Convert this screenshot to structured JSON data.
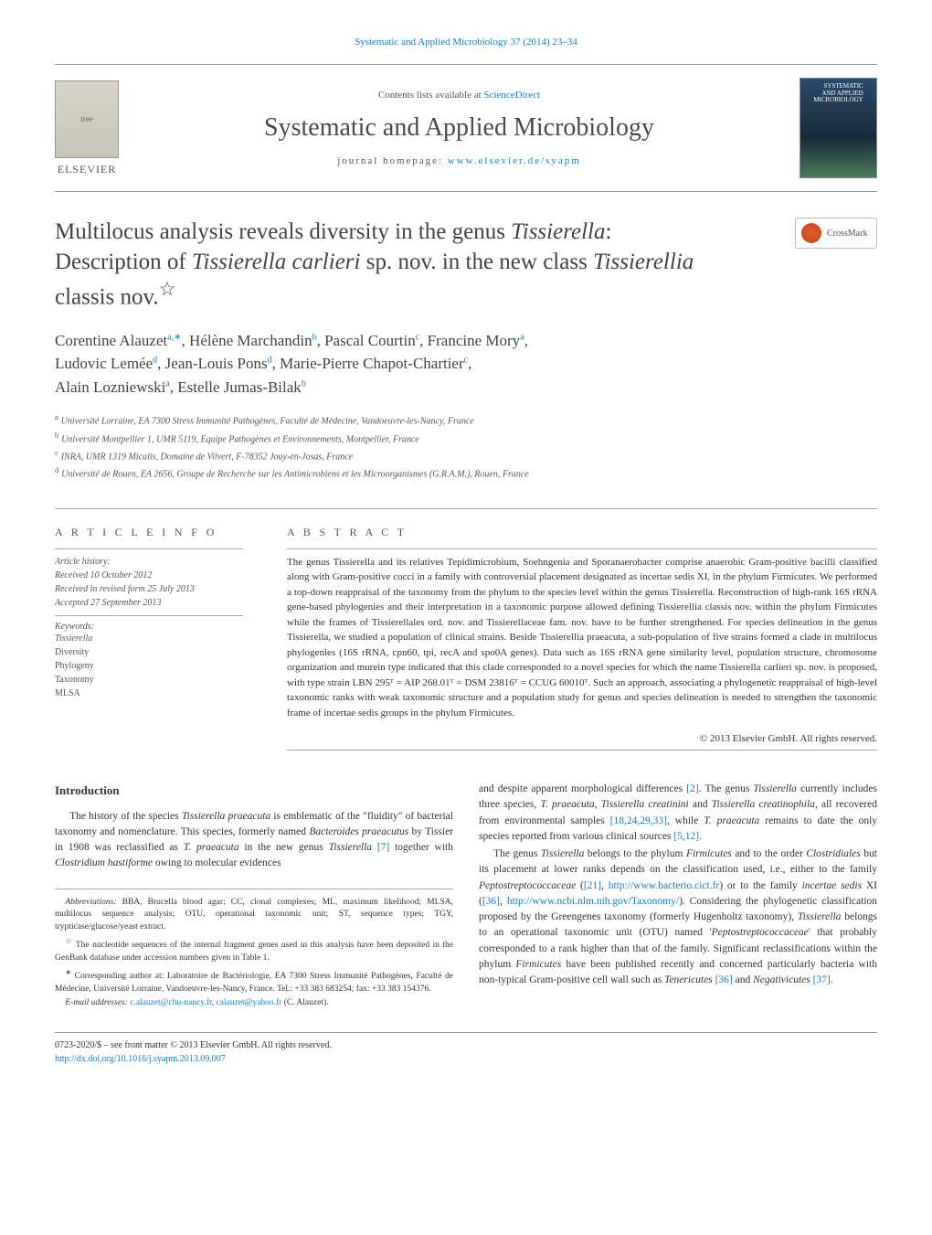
{
  "topLink": {
    "text": "Systematic and Applied Microbiology 37 (2014) 23–34",
    "color": "#1a7bb9"
  },
  "header": {
    "contentsPrefix": "Contents lists available at ",
    "contentsLink": "ScienceDirect",
    "journalName": "Systematic and Applied Microbiology",
    "homepagePrefix": "journal homepage: ",
    "homepageUrl": "www.elsevier.de/syapm",
    "elsevierLabel": "ELSEVIER",
    "coverTopLine1": "SYSTEMATIC",
    "coverTopLine2": "AND APPLIED",
    "coverTopLine3": "MICROBIOLOGY"
  },
  "crossmark": {
    "label": "CrossMark"
  },
  "title": {
    "line1_pre": "Multilocus analysis reveals diversity in the genus ",
    "line1_em": "Tissierella",
    "line1_post": ":",
    "line2_pre": "Description of ",
    "line2_em1": "Tissierella carlieri",
    "line2_mid": " sp. nov. in the new class ",
    "line2_em2": "Tissierellia",
    "line3": "classis nov.",
    "star": "☆"
  },
  "authors": {
    "a1": {
      "name": "Corentine Alauzet",
      "sup": "a,∗"
    },
    "a2": {
      "name": "Hélène Marchandin",
      "sup": "b"
    },
    "a3": {
      "name": "Pascal Courtin",
      "sup": "c"
    },
    "a4": {
      "name": "Francine Mory",
      "sup": "a"
    },
    "a5": {
      "name": "Ludovic Lemée",
      "sup": "d"
    },
    "a6": {
      "name": "Jean-Louis Pons",
      "sup": "d"
    },
    "a7": {
      "name": "Marie-Pierre Chapot-Chartier",
      "sup": "c"
    },
    "a8": {
      "name": "Alain Lozniewski",
      "sup": "a"
    },
    "a9": {
      "name": "Estelle Jumas-Bilak",
      "sup": "b"
    }
  },
  "affiliations": {
    "a": "Université Lorraine, EA 7300 Stress Immunité Pathogènes, Faculté de Médecine, Vandoeuvre-les-Nancy, France",
    "b": "Université Montpellier 1, UMR 5119, Equipe Pathogènes et Environnements, Montpellier, France",
    "c": "INRA, UMR 1319 Micalis, Domaine de Vilvert, F-78352 Jouy-en-Josas, France",
    "d": "Université de Rouen, EA 2656, Groupe de Recherche sur les Antimicrobiens et les Microorganismes (G.R.A.M.), Rouen, France"
  },
  "articleInfo": {
    "header": "A R T I C L E   I N F O",
    "historyLabel": "Article history:",
    "received": "Received 10 October 2012",
    "revised": "Received in revised form 25 July 2013",
    "accepted": "Accepted 27 September 2013",
    "keywordsLabel": "Keywords:",
    "keywords": [
      "Tissierella",
      "Diversity",
      "Phylogeny",
      "Taxonomy",
      "MLSA"
    ]
  },
  "abstract": {
    "header": "A B S T R A C T",
    "text": "The genus Tissierella and its relatives Tepidimicrobium, Soehngenia and Sporanaerobacter comprise anaerobic Gram-positive bacilli classified along with Gram-positive cocci in a family with controversial placement designated as incertae sedis XI, in the phylum Firmicutes. We performed a top-down reappraisal of the taxonomy from the phylum to the species level within the genus Tissierella. Reconstruction of high-rank 16S rRNA gene-based phylogenies and their interpretation in a taxonomic purpose allowed defining Tissierellia classis nov. within the phylum Firmicutes while the frames of Tissierellales ord. nov. and Tissierellaceae fam. nov. have to be further strengthened. For species delineation in the genus Tissierella, we studied a population of clinical strains. Beside Tissierellia praeacuta, a sub-population of five strains formed a clade in multilocus phylogenies (16S rRNA, cpn60, tpi, recA and spo0A genes). Data such as 16S rRNA gene similarity level, population structure, chromosome organization and murein type indicated that this clade corresponded to a novel species for which the name Tissierella carlieri sp. nov. is proposed, with type strain LBN 295ᵀ = AIP 268.01ᵀ = DSM 23816ᵀ = CCUG 60010ᵀ. Such an approach, associating a phylogenetic reappraisal of high-level taxonomic ranks with weak taxonomic structure and a population study for genus and species delineation is needed to strengthen the taxonomic frame of incertae sedis groups in the phylum Firmicutes.",
    "copyright": "© 2013 Elsevier GmbH. All rights reserved."
  },
  "intro": {
    "header": "Introduction",
    "p1_pre": "The history of the species ",
    "p1_em1": "Tissierella praeacuta",
    "p1_mid1": " is emblematic of the \"fluidity\" of bacterial taxonomy and nomenclature. This species, formerly named ",
    "p1_em2": "Bacteroides praeacutus",
    "p1_mid2": " by Tissier in 1908 was reclassified as ",
    "p1_em3": "T. praeacuta",
    "p1_mid3": " in the new genus ",
    "p1_em4": "Tissierella",
    "p1_ref1": " [7]",
    "p1_mid4": " together with ",
    "p1_em5": "Clostridium hastiforme",
    "p1_post": " owing to molecular evidences"
  },
  "col2": {
    "p1_pre": "and despite apparent morphological differences ",
    "p1_ref1": "[2]",
    "p1_mid1": ". The genus ",
    "p1_em1": "Tissierella",
    "p1_mid2": " currently includes three species, ",
    "p1_em2": "T. praeacuta",
    "p1_mid3": ", ",
    "p1_em3": "Tissierella creatinini",
    "p1_mid4": " and ",
    "p1_em4": "Tissierella creatinophila",
    "p1_mid5": ", all recovered from environmental samples ",
    "p1_ref2": "[18,24,29,33]",
    "p1_mid6": ", while ",
    "p1_em5": "T. praeacuta",
    "p1_mid7": " remains to date the only species reported from various clinical sources ",
    "p1_ref3": "[5,12]",
    "p1_post": ".",
    "p2_pre": "The genus ",
    "p2_em1": "Tissierella",
    "p2_mid1": " belongs to the phylum ",
    "p2_em2": "Firmicutes",
    "p2_mid2": " and to the order ",
    "p2_em3": "Clostridiales",
    "p2_mid3": " but its placement at lower ranks depends on the classification used, i.e., either to the family ",
    "p2_em4": "Peptostreptococcaceae",
    "p2_mid4": " (",
    "p2_ref1": "[21]",
    "p2_mid5": ", ",
    "p2_url1": "http://www.bacterio.cict.fr",
    "p2_mid6": ") or to the family ",
    "p2_em5": "incertae sedis",
    "p2_mid7": " XI (",
    "p2_ref2": "[36]",
    "p2_mid8": ", ",
    "p2_url2": "http://www.ncbi.nlm.nih.gov/Taxonomy/",
    "p2_mid9": "). Considering the phylogenetic classification proposed by the Greengenes taxonomy (formerly Hugenholtz taxonomy), ",
    "p2_em6": "Tissierella",
    "p2_mid10": " belongs to an operational taxonomic unit (OTU) named '",
    "p2_em7": "Peptostreptococcaceae",
    "p2_mid11": "' that probably corresponded to a rank higher than that of the family. Significant reclassifications within the phylum ",
    "p2_em8": "Firmicutes",
    "p2_mid12": " have been published recently and concerned particularly bacteria with non-typical Gram-positive cell wall such as ",
    "p2_em9": "Tenericutes",
    "p2_ref3": " [36]",
    "p2_mid13": " and ",
    "p2_em10": "Negativicutes",
    "p2_ref4": " [37]",
    "p2_post": "."
  },
  "footnotes": {
    "abbrev_label": "Abbreviations:",
    "abbrev_text": " BBA, Brucella blood agar; CC, clonal complexes; ML, maximum likelihood; MLSA, multilocus sequence analysis; OTU, operational taxonomic unit; ST, sequence types; TGY, trypticase/glucose/yeast extract.",
    "star": "☆",
    "star_text": " The nucleotide sequences of the internal fragment genes used in this analysis have been deposited in the GenBank database under accession numbers given in Table 1.",
    "corr_mark": "∗",
    "corr_text": " Corresponding author at: Laboratoire de Bactériologie, EA 7300 Stress Immunité Pathogènes, Faculté de Médecine, Université Lorraine, Vandoeuvre-les-Nancy, France. Tel.: +33 383 683254; fax: +33 383 154376.",
    "email_label": "E-mail addresses:",
    "email1": "c.alauzet@chu-nancy.fr",
    "email_sep": ", ",
    "email2": "calauzet@yahoo.fr",
    "email_post": " (C. Alauzet)."
  },
  "bottom": {
    "issn": "0723-2020/$ – see front matter © 2013 Elsevier GmbH. All rights reserved.",
    "doi": "http://dx.doi.org/10.1016/j.syapm.2013.09.007"
  },
  "colors": {
    "link": "#1a7bb9",
    "text": "#333333",
    "muted": "#555555",
    "border": "#999999"
  }
}
